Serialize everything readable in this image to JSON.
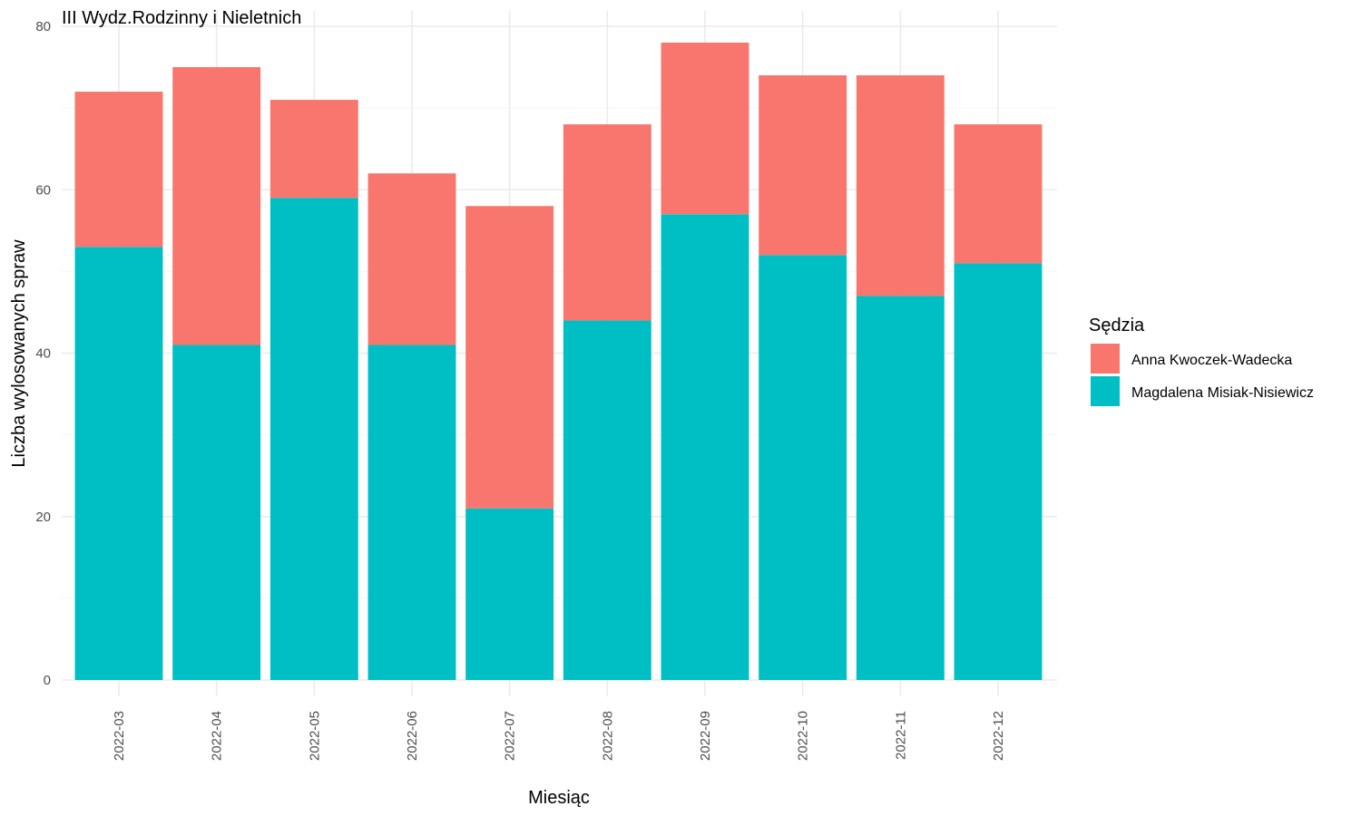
{
  "chart_data": {
    "type": "bar",
    "stacked": true,
    "title": "III Wydz.Rodzinny i Nieletnich",
    "xlabel": "Miesiąc",
    "ylabel": "Liczba wylosowanych spraw",
    "ylim": [
      0,
      80
    ],
    "yticks": [
      0,
      20,
      40,
      60,
      80
    ],
    "grid": true,
    "legend_position": "right",
    "legend_title": "Sędzia",
    "categories": [
      "2022-03",
      "2022-04",
      "2022-05",
      "2022-06",
      "2022-07",
      "2022-08",
      "2022-09",
      "2022-10",
      "2022-11",
      "2022-12"
    ],
    "series": [
      {
        "name": "Magdalena Misiak-Nisiewicz",
        "color": "#00BFC4",
        "values": [
          53,
          41,
          59,
          41,
          21,
          44,
          57,
          52,
          47,
          51
        ]
      },
      {
        "name": "Anna Kwoczek-Wadecka",
        "color": "#F8766D",
        "values": [
          19,
          34,
          12,
          21,
          37,
          24,
          21,
          22,
          27,
          17
        ]
      }
    ],
    "legend_order": [
      1,
      0
    ]
  }
}
